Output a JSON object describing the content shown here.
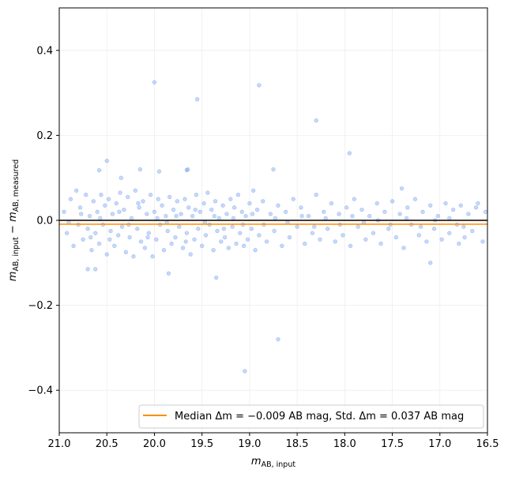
{
  "chart_data": {
    "type": "scatter",
    "xlabel": "m_AB, input",
    "ylabel": "m_AB, input − m_AB, measured",
    "xlim": [
      21.0,
      16.5
    ],
    "ylim": [
      -0.5,
      0.5
    ],
    "x_inverted": true,
    "grid": true,
    "xticks": [
      "21.0",
      "20.5",
      "20.0",
      "19.5",
      "19.0",
      "18.5",
      "18.0",
      "17.5",
      "17.0",
      "16.5"
    ],
    "yticks": [
      "−0.4",
      "−0.2",
      "0.0",
      "0.2",
      "0.4"
    ],
    "xtick_values": [
      21.0,
      20.5,
      20.0,
      19.5,
      19.0,
      18.5,
      18.0,
      17.5,
      17.0,
      16.5
    ],
    "ytick_values": [
      -0.4,
      -0.2,
      0.0,
      0.2,
      0.4
    ],
    "reference_line": {
      "y": 0.0,
      "color": "#000000"
    },
    "median_line": {
      "y": -0.009,
      "color": "#ff8c00"
    },
    "legend": {
      "placement": "lower-right",
      "label": "Median Δm = −0.009 AB mag, Std. Δm = 0.037 AB mag"
    },
    "point_color": "#6495ed",
    "points": [
      [
        20.0,
        0.325
      ],
      [
        18.9,
        0.318
      ],
      [
        19.55,
        0.285
      ],
      [
        18.3,
        0.235
      ],
      [
        17.95,
        0.158
      ],
      [
        18.7,
        -0.28
      ],
      [
        19.05,
        -0.355
      ],
      [
        19.35,
        -0.135
      ],
      [
        20.7,
        -0.115
      ],
      [
        20.62,
        -0.115
      ],
      [
        19.85,
        -0.125
      ],
      [
        20.5,
        0.14
      ],
      [
        20.15,
        0.12
      ],
      [
        19.95,
        0.115
      ],
      [
        18.75,
        0.12
      ],
      [
        19.65,
        0.12
      ],
      [
        19.66,
        0.118
      ],
      [
        20.58,
        0.118
      ],
      [
        20.35,
        0.1
      ],
      [
        17.4,
        0.075
      ],
      [
        17.1,
        -0.1
      ],
      [
        16.8,
        -0.055
      ],
      [
        16.6,
        0.04
      ],
      [
        20.95,
        0.02
      ],
      [
        20.92,
        -0.03
      ],
      [
        20.88,
        0.05
      ],
      [
        20.85,
        -0.06
      ],
      [
        20.82,
        0.07
      ],
      [
        20.8,
        -0.01
      ],
      [
        20.78,
        0.03
      ],
      [
        20.75,
        -0.045
      ],
      [
        20.72,
        0.06
      ],
      [
        20.7,
        -0.02
      ],
      [
        20.68,
        0.01
      ],
      [
        20.66,
        -0.07
      ],
      [
        20.64,
        0.045
      ],
      [
        20.62,
        -0.03
      ],
      [
        20.6,
        0.02
      ],
      [
        20.58,
        -0.055
      ],
      [
        20.56,
        0.06
      ],
      [
        20.54,
        -0.01
      ],
      [
        20.52,
        0.035
      ],
      [
        20.5,
        -0.08
      ],
      [
        20.48,
        0.05
      ],
      [
        20.46,
        -0.025
      ],
      [
        20.44,
        0.015
      ],
      [
        20.42,
        -0.06
      ],
      [
        20.4,
        0.04
      ],
      [
        20.38,
        -0.035
      ],
      [
        20.36,
        0.065
      ],
      [
        20.34,
        -0.015
      ],
      [
        20.32,
        0.025
      ],
      [
        20.3,
        -0.075
      ],
      [
        20.28,
        0.055
      ],
      [
        20.26,
        -0.04
      ],
      [
        20.24,
        0.005
      ],
      [
        20.22,
        -0.085
      ],
      [
        20.2,
        0.07
      ],
      [
        20.18,
        -0.02
      ],
      [
        20.16,
        0.03
      ],
      [
        20.14,
        -0.05
      ],
      [
        20.12,
        0.045
      ],
      [
        20.1,
        -0.065
      ],
      [
        20.08,
        0.015
      ],
      [
        20.06,
        -0.03
      ],
      [
        20.04,
        0.06
      ],
      [
        20.02,
        -0.085
      ],
      [
        20.0,
        0.02
      ],
      [
        19.98,
        -0.045
      ],
      [
        19.96,
        0.05
      ],
      [
        19.94,
        -0.01
      ],
      [
        19.92,
        0.035
      ],
      [
        19.9,
        -0.07
      ],
      [
        19.88,
        0.01
      ],
      [
        19.86,
        -0.025
      ],
      [
        19.84,
        0.055
      ],
      [
        19.82,
        -0.055
      ],
      [
        19.8,
        0.025
      ],
      [
        19.78,
        -0.04
      ],
      [
        19.76,
        0.045
      ],
      [
        19.74,
        -0.015
      ],
      [
        19.72,
        0.015
      ],
      [
        19.7,
        -0.065
      ],
      [
        19.68,
        0.05
      ],
      [
        19.66,
        -0.03
      ],
      [
        19.64,
        0.03
      ],
      [
        19.62,
        -0.08
      ],
      [
        19.6,
        0.01
      ],
      [
        19.58,
        -0.045
      ],
      [
        19.56,
        0.06
      ],
      [
        19.54,
        -0.02
      ],
      [
        19.52,
        0.02
      ],
      [
        19.5,
        -0.06
      ],
      [
        19.48,
        0.04
      ],
      [
        19.46,
        -0.035
      ],
      [
        19.44,
        0.065
      ],
      [
        19.42,
        -0.01
      ],
      [
        19.4,
        0.025
      ],
      [
        19.38,
        -0.07
      ],
      [
        19.36,
        0.045
      ],
      [
        19.34,
        -0.025
      ],
      [
        19.32,
        0.005
      ],
      [
        19.3,
        -0.05
      ],
      [
        19.28,
        0.035
      ],
      [
        19.26,
        -0.04
      ],
      [
        19.24,
        0.015
      ],
      [
        19.22,
        -0.065
      ],
      [
        19.2,
        0.05
      ],
      [
        19.18,
        -0.015
      ],
      [
        19.16,
        0.03
      ],
      [
        19.14,
        -0.055
      ],
      [
        19.12,
        0.06
      ],
      [
        19.1,
        -0.03
      ],
      [
        19.08,
        0.02
      ],
      [
        19.06,
        -0.06
      ],
      [
        19.04,
        0.01
      ],
      [
        19.02,
        -0.045
      ],
      [
        19.0,
        0.04
      ],
      [
        18.98,
        -0.02
      ],
      [
        18.96,
        0.07
      ],
      [
        18.94,
        -0.07
      ],
      [
        18.92,
        0.025
      ],
      [
        18.9,
        -0.035
      ],
      [
        18.86,
        0.045
      ],
      [
        18.82,
        -0.05
      ],
      [
        18.78,
        0.015
      ],
      [
        18.74,
        -0.025
      ],
      [
        18.7,
        0.035
      ],
      [
        18.66,
        -0.06
      ],
      [
        18.62,
        0.02
      ],
      [
        18.58,
        -0.04
      ],
      [
        18.54,
        0.05
      ],
      [
        18.5,
        -0.015
      ],
      [
        18.46,
        0.03
      ],
      [
        18.42,
        -0.055
      ],
      [
        18.38,
        0.01
      ],
      [
        18.34,
        -0.03
      ],
      [
        18.3,
        0.06
      ],
      [
        18.26,
        -0.045
      ],
      [
        18.22,
        0.02
      ],
      [
        18.18,
        -0.02
      ],
      [
        18.14,
        0.04
      ],
      [
        18.1,
        -0.05
      ],
      [
        18.06,
        0.015
      ],
      [
        18.02,
        -0.035
      ],
      [
        17.98,
        0.03
      ],
      [
        17.94,
        -0.06
      ],
      [
        17.9,
        0.05
      ],
      [
        17.86,
        -0.015
      ],
      [
        17.82,
        0.025
      ],
      [
        17.78,
        -0.045
      ],
      [
        17.74,
        0.01
      ],
      [
        17.7,
        -0.03
      ],
      [
        17.66,
        0.04
      ],
      [
        17.62,
        -0.055
      ],
      [
        17.58,
        0.02
      ],
      [
        17.54,
        -0.02
      ],
      [
        17.5,
        0.045
      ],
      [
        17.46,
        -0.04
      ],
      [
        17.42,
        0.015
      ],
      [
        17.38,
        -0.065
      ],
      [
        17.34,
        0.03
      ],
      [
        17.3,
        -0.01
      ],
      [
        17.26,
        0.05
      ],
      [
        17.22,
        -0.035
      ],
      [
        17.18,
        0.02
      ],
      [
        17.14,
        -0.05
      ],
      [
        17.1,
        0.035
      ],
      [
        17.06,
        -0.02
      ],
      [
        17.02,
        0.01
      ],
      [
        16.98,
        -0.045
      ],
      [
        16.94,
        0.04
      ],
      [
        16.9,
        -0.03
      ],
      [
        16.86,
        0.025
      ],
      [
        16.82,
        -0.01
      ],
      [
        16.78,
        0.035
      ],
      [
        16.74,
        -0.04
      ],
      [
        16.7,
        0.015
      ],
      [
        16.66,
        -0.025
      ],
      [
        16.62,
        0.03
      ],
      [
        16.55,
        -0.05
      ],
      [
        16.52,
        0.02
      ],
      [
        20.9,
        -0.005
      ],
      [
        20.77,
        0.015
      ],
      [
        20.67,
        -0.04
      ],
      [
        20.57,
        0.005
      ],
      [
        20.47,
        -0.045
      ],
      [
        20.37,
        0.02
      ],
      [
        20.27,
        -0.01
      ],
      [
        20.17,
        0.04
      ],
      [
        20.07,
        -0.04
      ],
      [
        19.97,
        0.005
      ],
      [
        19.87,
        -0.005
      ],
      [
        19.77,
        0.01
      ],
      [
        19.67,
        -0.05
      ],
      [
        19.57,
        0.025
      ],
      [
        19.47,
        -0.005
      ],
      [
        19.37,
        0.01
      ],
      [
        19.27,
        -0.02
      ],
      [
        19.17,
        0.005
      ],
      [
        19.07,
        -0.01
      ],
      [
        18.97,
        0.015
      ],
      [
        18.85,
        -0.01
      ],
      [
        18.73,
        0.005
      ],
      [
        18.6,
        -0.005
      ],
      [
        18.45,
        0.01
      ],
      [
        18.32,
        -0.015
      ],
      [
        18.2,
        0.005
      ],
      [
        18.05,
        -0.01
      ],
      [
        17.92,
        0.01
      ],
      [
        17.8,
        -0.005
      ],
      [
        17.65,
        0.0
      ],
      [
        17.52,
        -0.01
      ],
      [
        17.35,
        0.005
      ],
      [
        17.2,
        -0.015
      ],
      [
        17.05,
        0.0
      ],
      [
        16.9,
        0.005
      ],
      [
        16.75,
        -0.015
      ]
    ]
  }
}
